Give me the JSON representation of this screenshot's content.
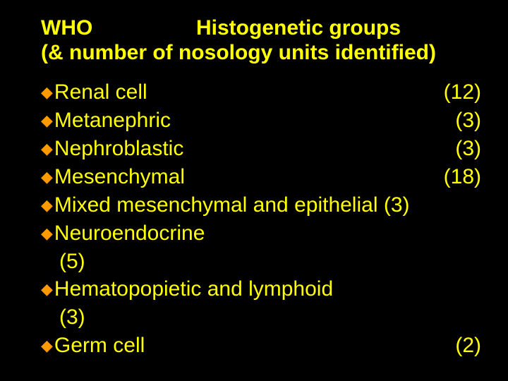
{
  "colors": {
    "background": "#000000",
    "text": "#ffff00",
    "bullet": "#ff9900"
  },
  "typography": {
    "title_fontsize_pt": 22,
    "body_fontsize_pt": 22,
    "font_family": "Arial",
    "title_weight": "bold",
    "body_weight": "normal"
  },
  "title": {
    "left": "WHO",
    "right": "Histogenetic groups",
    "line2": "(& number of nosology units identified)"
  },
  "bullet_glyph": "◆",
  "items": [
    {
      "label": "Renal cell",
      "count": "(12)",
      "inline": true
    },
    {
      "label": "Metanephric",
      "count": "(3)",
      "inline": true
    },
    {
      "label": "Nephroblastic",
      "count": "(3)",
      "inline": true
    },
    {
      "label": "Mesenchymal",
      "count": "(18)",
      "inline": true
    },
    {
      "label": "Mixed mesenchymal and epithelial",
      "count": "(3)",
      "inline": true
    },
    {
      "label": "Neuroendocrine",
      "count": "(5)",
      "inline": false
    },
    {
      "label": "Hematopopietic and lymphoid",
      "count": "(3)",
      "inline": false
    },
    {
      "label": "Germ cell",
      "count": "(2)",
      "inline": true
    }
  ]
}
